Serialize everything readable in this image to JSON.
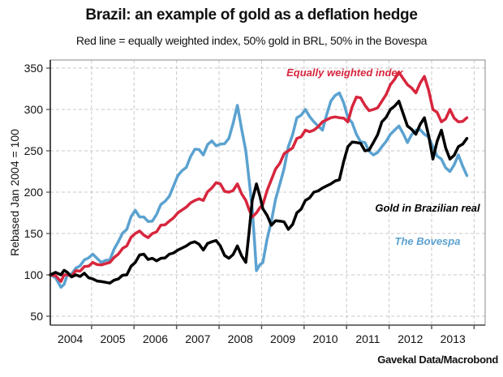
{
  "header": {
    "title": "Brazil: an example of gold as a deflation hedge",
    "subtitle": "Red line = equally weighted index, 50% gold in BRL, 50% in the Bovespa"
  },
  "footer": {
    "source": "Gavekal Data/Macrobond"
  },
  "chart_data": {
    "type": "line",
    "title": "Brazil: an example of gold as a deflation hedge",
    "subtitle": "Red line = equally weighted index, 50% gold in BRL, 50% in the Bovespa",
    "xlabel": "",
    "ylabel": "Rebased Jan 2004 = 100",
    "xlim": [
      2004.0,
      2013.85
    ],
    "ylim": [
      40,
      360
    ],
    "yticks": [
      50,
      100,
      150,
      200,
      250,
      300,
      350
    ],
    "xtick_labels": [
      "2004",
      "2005",
      "2006",
      "2007",
      "2008",
      "2009",
      "2010",
      "2011",
      "2012",
      "2013"
    ],
    "grid": true,
    "annotations": [
      {
        "text": "Equally weighted index",
        "series": "Equally weighted index",
        "color": "#d7263d"
      },
      {
        "text": "Gold in Brazilian real",
        "series": "Gold in Brazilian real",
        "color": "#000000"
      },
      {
        "text": "The Bovespa",
        "series": "The Bovespa",
        "color": "#5ba2d0"
      }
    ],
    "x": [
      2004.0,
      2004.25,
      2004.4,
      2004.6,
      2004.8,
      2005.0,
      2005.2,
      2005.4,
      2005.6,
      2005.8,
      2006.0,
      2006.2,
      2006.4,
      2006.6,
      2006.8,
      2007.0,
      2007.2,
      2007.4,
      2007.6,
      2007.8,
      2008.0,
      2008.2,
      2008.4,
      2008.6,
      2008.75,
      2008.85,
      2009.0,
      2009.2,
      2009.4,
      2009.6,
      2009.8,
      2010.0,
      2010.2,
      2010.4,
      2010.6,
      2010.8,
      2011.0,
      2011.2,
      2011.4,
      2011.6,
      2011.8,
      2012.0,
      2012.2,
      2012.4,
      2012.6,
      2012.8,
      2013.0,
      2013.2,
      2013.4,
      2013.6,
      2013.8
    ],
    "series": [
      {
        "name": "The Bovespa",
        "color": "#5ba2d0",
        "values": [
          100,
          85,
          100,
          108,
          118,
          125,
          115,
          118,
          140,
          155,
          178,
          170,
          165,
          185,
          195,
          220,
          230,
          252,
          245,
          262,
          258,
          265,
          305,
          250,
          180,
          105,
          115,
          165,
          210,
          255,
          290,
          300,
          285,
          275,
          310,
          320,
          290,
          270,
          260,
          245,
          255,
          270,
          280,
          260,
          275,
          270,
          255,
          240,
          225,
          245,
          220
        ]
      },
      {
        "name": "Equally weighted index",
        "color": "#d7263d",
        "values": [
          100,
          92,
          100,
          105,
          110,
          115,
          112,
          115,
          125,
          135,
          150,
          148,
          150,
          160,
          165,
          175,
          182,
          190,
          190,
          205,
          210,
          200,
          210,
          190,
          170,
          175,
          185,
          215,
          235,
          250,
          265,
          275,
          275,
          285,
          290,
          290,
          285,
          315,
          305,
          300,
          310,
          330,
          345,
          330,
          320,
          340,
          300,
          285,
          300,
          285,
          290
        ]
      },
      {
        "name": "Gold in Brazilian real",
        "color": "#000000",
        "values": [
          100,
          100,
          103,
          100,
          102,
          95,
          92,
          90,
          95,
          100,
          115,
          125,
          120,
          120,
          125,
          130,
          135,
          140,
          130,
          140,
          135,
          120,
          135,
          115,
          190,
          210,
          180,
          160,
          165,
          155,
          175,
          190,
          200,
          205,
          210,
          215,
          255,
          260,
          250,
          260,
          285,
          300,
          310,
          280,
          270,
          290,
          240,
          275,
          240,
          255,
          265
        ]
      }
    ]
  }
}
